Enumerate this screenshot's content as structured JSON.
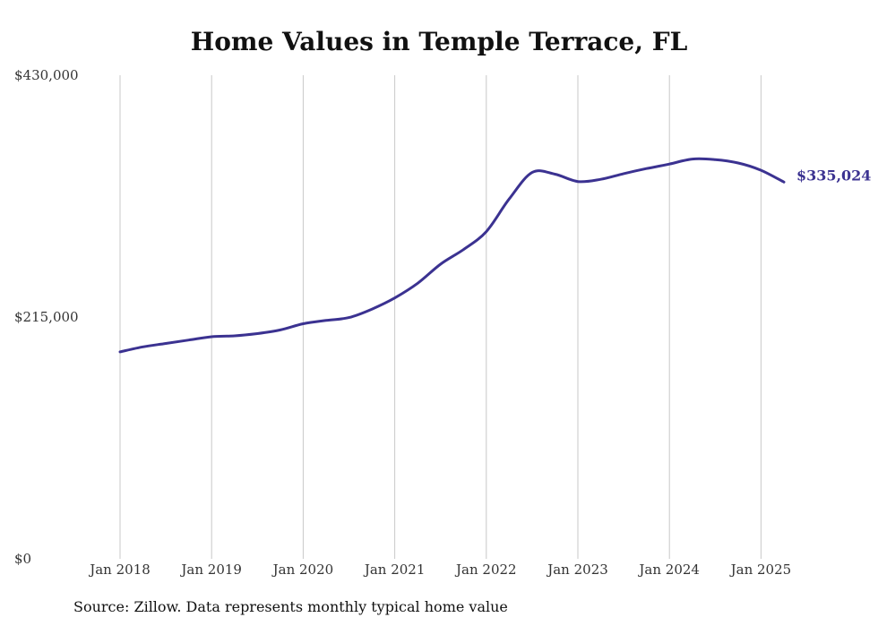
{
  "chart_data": {
    "type": "line",
    "title": "Home Values in Temple Terrace, FL",
    "footnote": "Source: Zillow. Data represents monthly typical home value",
    "xlabel": "",
    "ylabel": "",
    "x_tick_labels": [
      "Jan 2018",
      "Jan 2019",
      "Jan 2020",
      "Jan 2021",
      "Jan 2022",
      "Jan 2023",
      "Jan 2024",
      "Jan 2025"
    ],
    "y_tick_labels": [
      "$430,000",
      "$215,000",
      "$0"
    ],
    "y_ticks": [
      430000,
      215000,
      0
    ],
    "ylim": [
      0,
      430000
    ],
    "xlim": [
      "2018-01",
      "2025-04"
    ],
    "grid": "vertical",
    "line_color": "#3b3291",
    "end_label": "$335,024",
    "series": [
      {
        "points": [
          [
            "2018-01",
            184000
          ],
          [
            "2018-04",
            188500
          ],
          [
            "2018-07",
            191500
          ],
          [
            "2018-10",
            194500
          ],
          [
            "2019-01",
            197500
          ],
          [
            "2019-04",
            198300
          ],
          [
            "2019-07",
            200300
          ],
          [
            "2019-10",
            203500
          ],
          [
            "2020-01",
            209000
          ],
          [
            "2020-04",
            212000
          ],
          [
            "2020-07",
            214500
          ],
          [
            "2020-10",
            222000
          ],
          [
            "2021-01",
            232000
          ],
          [
            "2021-04",
            245000
          ],
          [
            "2021-07",
            262000
          ],
          [
            "2021-10",
            275000
          ],
          [
            "2022-01",
            291000
          ],
          [
            "2022-04",
            320000
          ],
          [
            "2022-07",
            343500
          ],
          [
            "2022-10",
            342000
          ],
          [
            "2023-01",
            335500
          ],
          [
            "2023-04",
            337500
          ],
          [
            "2023-07",
            342500
          ],
          [
            "2023-10",
            347000
          ],
          [
            "2024-01",
            351000
          ],
          [
            "2024-04",
            355500
          ],
          [
            "2024-07",
            355000
          ],
          [
            "2024-10",
            352000
          ],
          [
            "2025-01",
            345500
          ],
          [
            "2025-04",
            335024
          ]
        ]
      }
    ]
  }
}
